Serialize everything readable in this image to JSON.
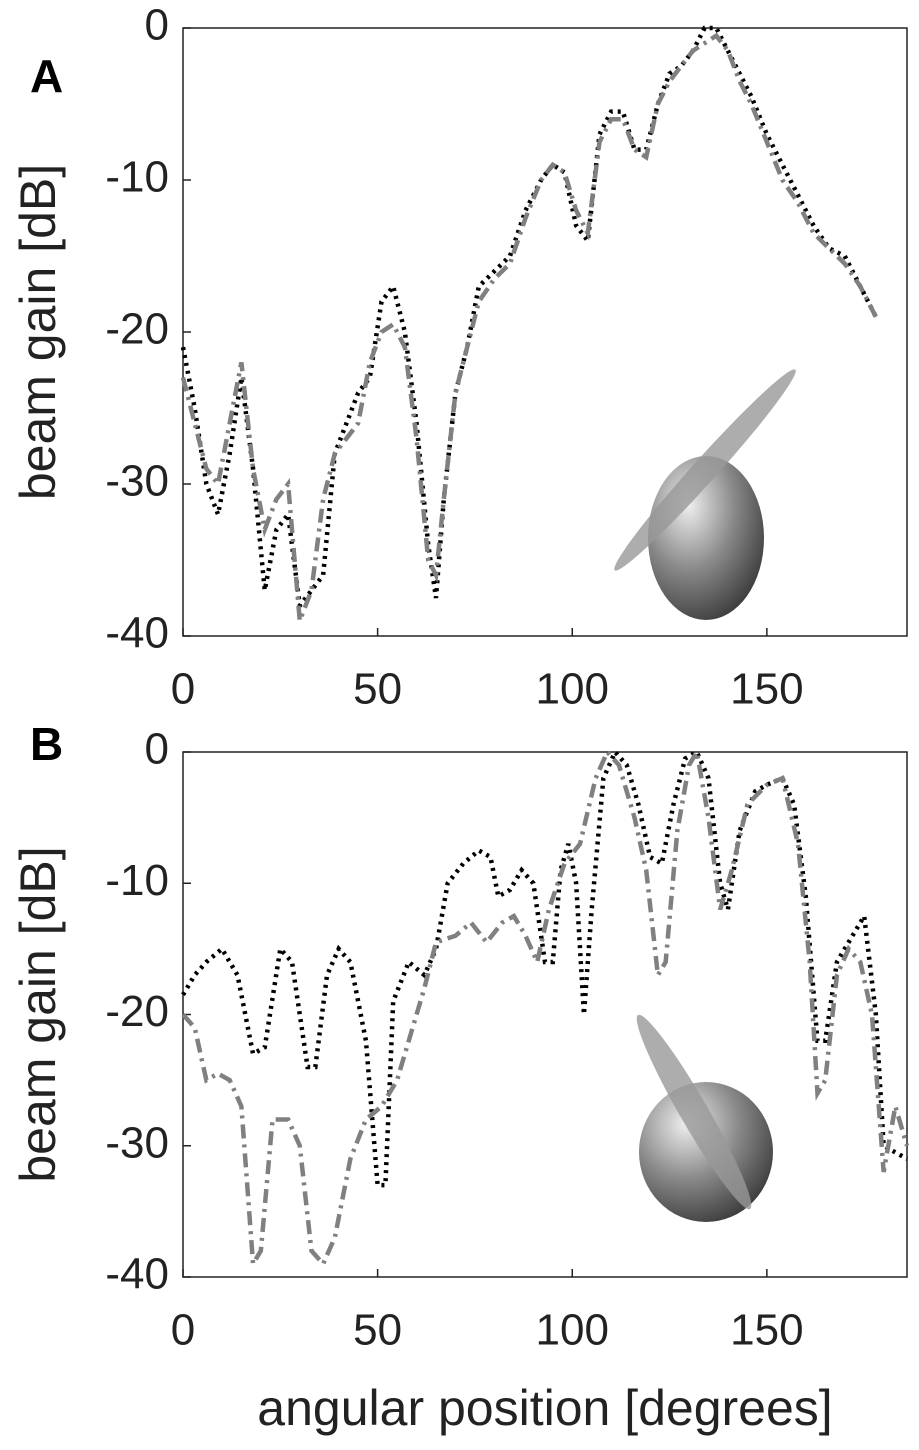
{
  "chart_data": [
    {
      "type": "line",
      "title": "A",
      "ylabel": "beam gain [dB]",
      "xlim": [
        0,
        186
      ],
      "xticks": [
        0,
        50,
        100,
        150
      ],
      "ylim": [
        -40,
        0
      ],
      "yticks": [
        -40,
        -30,
        -20,
        -10,
        0
      ],
      "x": [
        0,
        3,
        6,
        9,
        12,
        15,
        18,
        21,
        24,
        27,
        30,
        33,
        36,
        39,
        42,
        45,
        48,
        51,
        54,
        57,
        60,
        63,
        65,
        67,
        70,
        73,
        76,
        80,
        84,
        88,
        92,
        95,
        98,
        101,
        104,
        107,
        110,
        113,
        116,
        119,
        122,
        125,
        128,
        131,
        134,
        137,
        140,
        143,
        146,
        150,
        154,
        158,
        162,
        166,
        170,
        174,
        178
      ],
      "series": [
        {
          "color": "#000000",
          "style": "dotted",
          "values": [
            -21,
            -25,
            -30,
            -32,
            -28,
            -23,
            -29,
            -37,
            -33,
            -32,
            -38,
            -37,
            -36,
            -28,
            -26,
            -24,
            -23,
            -18,
            -17,
            -20,
            -26,
            -34,
            -37.5,
            -31,
            -24,
            -21,
            -17,
            -16,
            -15,
            -12,
            -10,
            -9,
            -9.5,
            -13,
            -14,
            -7,
            -5.5,
            -5.5,
            -8,
            -8,
            -5,
            -3,
            -2.5,
            -1.5,
            0,
            0,
            -1.5,
            -3,
            -4.5,
            -7,
            -9,
            -11,
            -13,
            -14.5,
            -15,
            -17,
            -19
          ]
        },
        {
          "color": "#808080",
          "style": "dashdot",
          "values": [
            -23,
            -26,
            -29,
            -30,
            -26,
            -22,
            -29,
            -33,
            -31,
            -30,
            -39,
            -37,
            -31,
            -28,
            -27,
            -26,
            -22,
            -20,
            -19.5,
            -21,
            -27,
            -35,
            -36,
            -31,
            -24,
            -21,
            -18,
            -16.5,
            -15.5,
            -12.5,
            -10,
            -9,
            -9.5,
            -12,
            -13.5,
            -7.5,
            -6,
            -6,
            -8,
            -8.5,
            -5,
            -3.5,
            -2.5,
            -1.5,
            -1,
            -0.5,
            -1.5,
            -3.5,
            -5,
            -7.5,
            -10,
            -11.5,
            -13.5,
            -14.5,
            -15.5,
            -17,
            -19
          ]
        }
      ]
    },
    {
      "type": "line",
      "title": "B",
      "ylabel": "beam gain [dB]",
      "xlabel": "angular  position [degrees]",
      "xlim": [
        0,
        186
      ],
      "xticks": [
        0,
        50,
        100,
        150
      ],
      "ylim": [
        -40,
        0
      ],
      "yticks": [
        -40,
        -30,
        -20,
        -10,
        0
      ],
      "series": [
        {
          "color": "#000000",
          "style": "dotted",
          "x": [
            0,
            3,
            6,
            10,
            14,
            18,
            21,
            25,
            28,
            32,
            34,
            37,
            40,
            43,
            47,
            50,
            52,
            54,
            58,
            62,
            65,
            68,
            72,
            76,
            79,
            81,
            84,
            87,
            90,
            93,
            95,
            97,
            99,
            101,
            103,
            105,
            108,
            111,
            114,
            117,
            120,
            123,
            126,
            129,
            132,
            135,
            138,
            140,
            143,
            147,
            150,
            154,
            157,
            160,
            163,
            165,
            168,
            172,
            175,
            178,
            180,
            186
          ],
          "values": [
            -18.5,
            -17,
            -16,
            -15,
            -17,
            -23,
            -22.5,
            -15,
            -16,
            -24,
            -24,
            -17,
            -15,
            -16,
            -22,
            -33,
            -33,
            -19,
            -16,
            -17,
            -15,
            -10,
            -8.5,
            -7.5,
            -8,
            -11,
            -10.5,
            -9,
            -10,
            -16,
            -16,
            -9,
            -7,
            -10,
            -20,
            -12,
            -2,
            0,
            -1,
            -4,
            -8,
            -8.5,
            -4,
            -0.5,
            0,
            -2,
            -10,
            -12,
            -6,
            -3,
            -2.5,
            -2,
            -4,
            -11,
            -22,
            -22,
            -16,
            -14,
            -12.5,
            -20,
            -30,
            -31
          ]
        },
        {
          "color": "#808080",
          "style": "dashdot",
          "x": [
            0,
            3,
            6,
            9,
            12,
            15,
            18,
            20,
            23,
            27,
            30,
            33,
            36,
            39,
            43,
            47,
            51,
            55,
            60,
            62,
            65,
            70,
            74,
            78,
            82,
            85,
            88,
            91,
            94,
            98,
            102,
            106,
            109,
            112,
            116,
            119,
            122,
            124,
            127,
            130,
            132,
            135,
            138,
            141,
            145,
            150,
            154,
            158,
            161,
            163,
            165,
            168,
            171,
            174,
            177,
            180,
            183,
            186
          ],
          "values": [
            -20,
            -21,
            -25,
            -24.5,
            -25,
            -27,
            -39,
            -38,
            -28,
            -28,
            -30,
            -38,
            -39,
            -37,
            -31,
            -28,
            -27,
            -25,
            -20,
            -18,
            -14.5,
            -14,
            -13,
            -14.5,
            -13,
            -12.5,
            -14,
            -16,
            -12,
            -8.5,
            -7,
            -2,
            0,
            -1,
            -5,
            -9,
            -17,
            -16,
            -6,
            -1,
            0,
            -5,
            -12,
            -9,
            -4,
            -2.5,
            -2,
            -7,
            -16,
            -26,
            -25,
            -17,
            -15,
            -16,
            -20,
            -32,
            -27,
            -30
          ]
        }
      ]
    }
  ]
}
